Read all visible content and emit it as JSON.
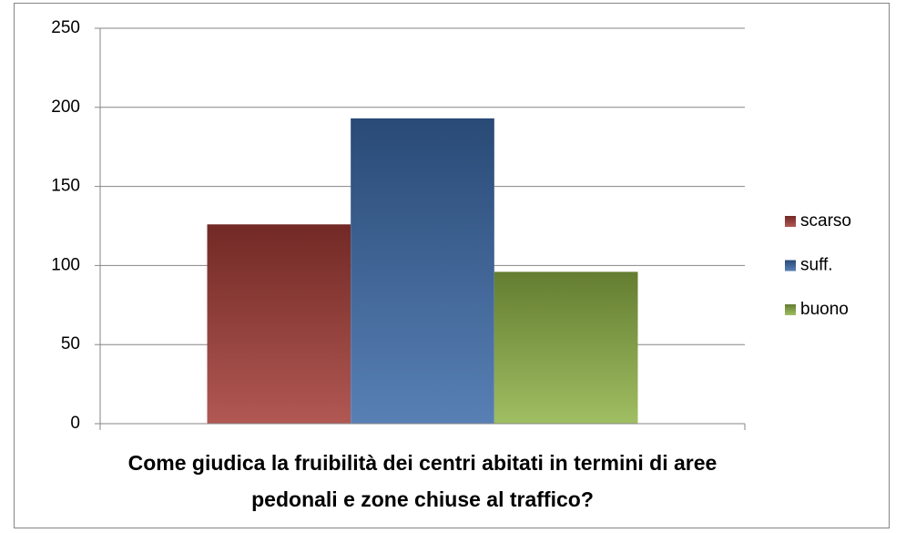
{
  "chart_data": {
    "type": "bar",
    "categories": [
      "Come giudica la fruibilità dei centri abitati in termini di aree pedonali e zone chiuse al traffico?"
    ],
    "series": [
      {
        "name": "scarso",
        "color": "#a33a35",
        "values": [
          126
        ]
      },
      {
        "name": "suff.",
        "color": "#3b6aa8",
        "values": [
          193
        ]
      },
      {
        "name": "buono",
        "color": "#8fb346",
        "values": [
          96
        ]
      }
    ],
    "ylim": [
      0,
      250
    ],
    "yticks": [
      0,
      50,
      100,
      150,
      200,
      250
    ],
    "grid": true,
    "legend": "right"
  }
}
